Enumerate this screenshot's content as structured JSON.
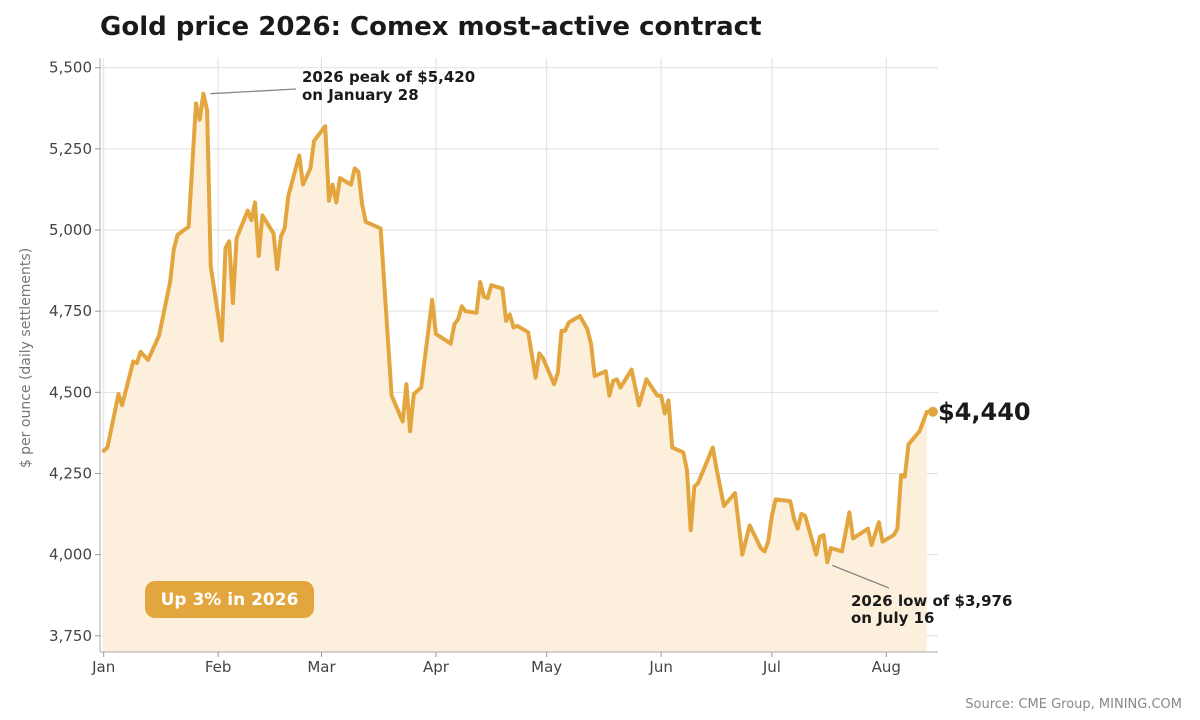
{
  "title": "Gold price 2026: Comex most-active contract",
  "source": "Source: CME Group, MINING.COM",
  "chart_data": {
    "type": "area",
    "title": "Gold price 2026: Comex most-active contract",
    "ylabel": "$ per ounce (daily settlements)",
    "xlabel": "",
    "ylim": [
      3700,
      5530
    ],
    "yticks": [
      3750,
      4000,
      4250,
      4500,
      4750,
      5000,
      5250,
      5500
    ],
    "ytick_labels": [
      "3,750",
      "4,000",
      "4,250",
      "4,500",
      "4,750",
      "5,000",
      "5,250",
      "5,500"
    ],
    "xlim": [
      "2025-12-31",
      "2026-08-15"
    ],
    "xticks": [
      "2026-01-01",
      "2026-02-01",
      "2026-03-01",
      "2026-04-01",
      "2026-05-01",
      "2026-06-01",
      "2026-07-01",
      "2026-08-01"
    ],
    "xtick_labels": [
      "Jan",
      "Feb",
      "Mar",
      "Apr",
      "May",
      "Jun",
      "Jul",
      "Aug"
    ],
    "grid": true,
    "series": [
      {
        "color": "#e3a63f",
        "fill": "#fcf0dc",
        "points": [
          [
            "2026-01-01",
            4320
          ],
          [
            "2026-01-02",
            4330
          ],
          [
            "2026-01-05",
            4495
          ],
          [
            "2026-01-06",
            4460
          ],
          [
            "2026-01-09",
            4595
          ],
          [
            "2026-01-10",
            4590
          ],
          [
            "2026-01-11",
            4625
          ],
          [
            "2026-01-13",
            4600
          ],
          [
            "2026-01-16",
            4675
          ],
          [
            "2026-01-19",
            4840
          ],
          [
            "2026-01-20",
            4940
          ],
          [
            "2026-01-21",
            4985
          ],
          [
            "2026-01-24",
            5010
          ],
          [
            "2026-01-26",
            5390
          ],
          [
            "2026-01-27",
            5340
          ],
          [
            "2026-01-28",
            5420
          ],
          [
            "2026-01-29",
            5370
          ],
          [
            "2026-01-30",
            4890
          ],
          [
            "2026-02-02",
            4660
          ],
          [
            "2026-02-03",
            4945
          ],
          [
            "2026-02-04",
            4965
          ],
          [
            "2026-02-05",
            4775
          ],
          [
            "2026-02-06",
            4975
          ],
          [
            "2026-02-09",
            5060
          ],
          [
            "2026-02-10",
            5030
          ],
          [
            "2026-02-11",
            5085
          ],
          [
            "2026-02-12",
            4920
          ],
          [
            "2026-02-13",
            5045
          ],
          [
            "2026-02-16",
            4990
          ],
          [
            "2026-02-17",
            4880
          ],
          [
            "2026-02-18",
            4980
          ],
          [
            "2026-02-19",
            5005
          ],
          [
            "2026-02-20",
            5105
          ],
          [
            "2026-02-23",
            5230
          ],
          [
            "2026-02-24",
            5140
          ],
          [
            "2026-02-26",
            5190
          ],
          [
            "2026-02-27",
            5275
          ],
          [
            "2026-03-02",
            5320
          ],
          [
            "2026-03-03",
            5090
          ],
          [
            "2026-03-04",
            5140
          ],
          [
            "2026-03-05",
            5085
          ],
          [
            "2026-03-06",
            5160
          ],
          [
            "2026-03-09",
            5140
          ],
          [
            "2026-03-10",
            5190
          ],
          [
            "2026-03-11",
            5180
          ],
          [
            "2026-03-12",
            5080
          ],
          [
            "2026-03-13",
            5025
          ],
          [
            "2026-03-16",
            5010
          ],
          [
            "2026-03-17",
            5005
          ],
          [
            "2026-03-20",
            4490
          ],
          [
            "2026-03-23",
            4410
          ],
          [
            "2026-03-24",
            4525
          ],
          [
            "2026-03-25",
            4380
          ],
          [
            "2026-03-26",
            4495
          ],
          [
            "2026-03-28",
            4515
          ],
          [
            "2026-03-31",
            4785
          ],
          [
            "2026-04-01",
            4680
          ],
          [
            "2026-04-05",
            4650
          ],
          [
            "2026-04-06",
            4710
          ],
          [
            "2026-04-07",
            4725
          ],
          [
            "2026-04-08",
            4765
          ],
          [
            "2026-04-09",
            4750
          ],
          [
            "2026-04-12",
            4745
          ],
          [
            "2026-04-13",
            4840
          ],
          [
            "2026-04-14",
            4795
          ],
          [
            "2026-04-15",
            4790
          ],
          [
            "2026-04-16",
            4830
          ],
          [
            "2026-04-19",
            4820
          ],
          [
            "2026-04-20",
            4720
          ],
          [
            "2026-04-21",
            4740
          ],
          [
            "2026-04-22",
            4700
          ],
          [
            "2026-04-23",
            4705
          ],
          [
            "2026-04-26",
            4685
          ],
          [
            "2026-04-28",
            4545
          ],
          [
            "2026-04-29",
            4620
          ],
          [
            "2026-04-30",
            4605
          ],
          [
            "2026-05-03",
            4525
          ],
          [
            "2026-05-04",
            4560
          ],
          [
            "2026-05-05",
            4690
          ],
          [
            "2026-05-06",
            4690
          ],
          [
            "2026-05-07",
            4715
          ],
          [
            "2026-05-10",
            4735
          ],
          [
            "2026-05-12",
            4695
          ],
          [
            "2026-05-13",
            4650
          ],
          [
            "2026-05-14",
            4550
          ],
          [
            "2026-05-17",
            4565
          ],
          [
            "2026-05-18",
            4490
          ],
          [
            "2026-05-19",
            4535
          ],
          [
            "2026-05-20",
            4540
          ],
          [
            "2026-05-21",
            4515
          ],
          [
            "2026-05-24",
            4570
          ],
          [
            "2026-05-26",
            4460
          ],
          [
            "2026-05-28",
            4540
          ],
          [
            "2026-05-31",
            4490
          ],
          [
            "2026-06-01",
            4490
          ],
          [
            "2026-06-02",
            4435
          ],
          [
            "2026-06-03",
            4475
          ],
          [
            "2026-06-04",
            4330
          ],
          [
            "2026-06-07",
            4315
          ],
          [
            "2026-06-08",
            4260
          ],
          [
            "2026-06-09",
            4075
          ],
          [
            "2026-06-10",
            4210
          ],
          [
            "2026-06-11",
            4220
          ],
          [
            "2026-06-15",
            4330
          ],
          [
            "2026-06-16",
            4265
          ],
          [
            "2026-06-18",
            4150
          ],
          [
            "2026-06-21",
            4190
          ],
          [
            "2026-06-23",
            4000
          ],
          [
            "2026-06-25",
            4090
          ],
          [
            "2026-06-28",
            4020
          ],
          [
            "2026-06-29",
            4010
          ],
          [
            "2026-06-30",
            4040
          ],
          [
            "2026-07-01",
            4120
          ],
          [
            "2026-07-02",
            4170
          ],
          [
            "2026-07-06",
            4165
          ],
          [
            "2026-07-07",
            4110
          ],
          [
            "2026-07-08",
            4080
          ],
          [
            "2026-07-09",
            4125
          ],
          [
            "2026-07-10",
            4120
          ],
          [
            "2026-07-13",
            4000
          ],
          [
            "2026-07-14",
            4055
          ],
          [
            "2026-07-15",
            4060
          ],
          [
            "2026-07-16",
            3976
          ],
          [
            "2026-07-17",
            4020
          ],
          [
            "2026-07-20",
            4010
          ],
          [
            "2026-07-22",
            4130
          ],
          [
            "2026-07-23",
            4050
          ],
          [
            "2026-07-27",
            4080
          ],
          [
            "2026-07-28",
            4030
          ],
          [
            "2026-07-30",
            4100
          ],
          [
            "2026-07-31",
            4040
          ],
          [
            "2026-08-03",
            4060
          ],
          [
            "2026-08-04",
            4080
          ],
          [
            "2026-08-05",
            4245
          ],
          [
            "2026-08-06",
            4240
          ],
          [
            "2026-08-07",
            4340
          ],
          [
            "2026-08-10",
            4380
          ],
          [
            "2026-08-11",
            4410
          ],
          [
            "2026-08-12",
            4440
          ]
        ]
      }
    ],
    "last_point": {
      "x": "2026-08-12",
      "y": 4440,
      "label": "$4,440"
    },
    "annotations": [
      {
        "lines": [
          "2026 peak of $5,420",
          "on January 28"
        ],
        "target": [
          "2026-01-28",
          5420
        ],
        "anchor": "upper-right"
      },
      {
        "lines": [
          "2026 low of $3,976",
          "on July 16"
        ],
        "target": [
          "2026-07-16",
          3976
        ],
        "anchor": "lower-right"
      }
    ],
    "badge": {
      "text": "Up 3% in 2026",
      "color": "#e3a63f",
      "placement": "bottom-left"
    }
  }
}
